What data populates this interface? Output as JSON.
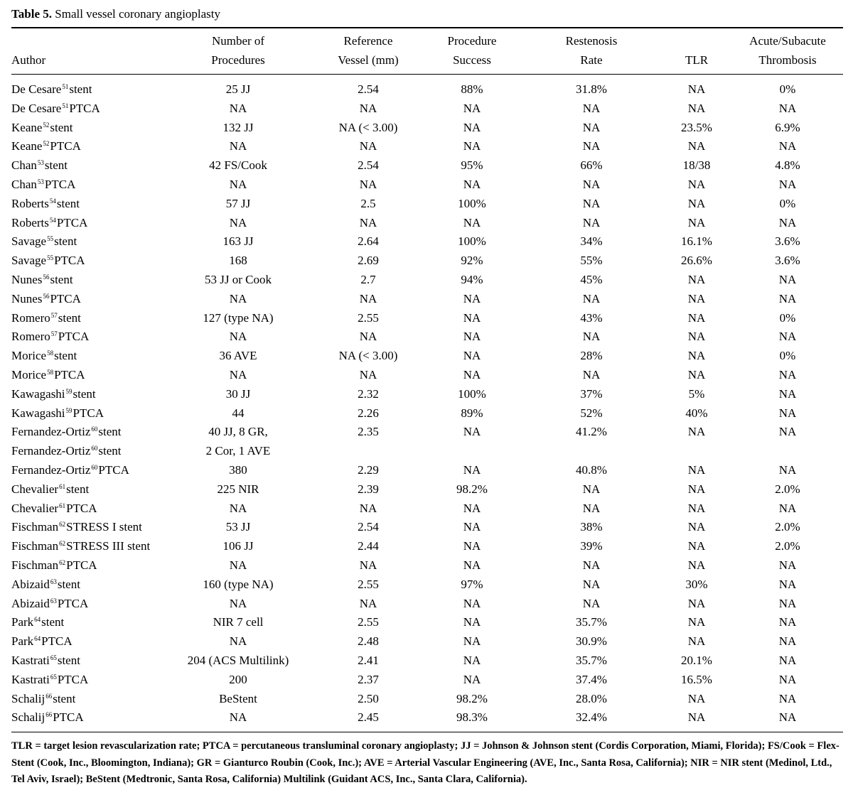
{
  "caption": {
    "label": "Table 5.",
    "text": "Small vessel coronary angioplasty"
  },
  "header": {
    "row1": [
      "",
      "Number of",
      "Reference",
      "Procedure",
      "Restenosis",
      "",
      "Acute/Subacute"
    ],
    "row2": [
      "Author",
      "Procedures",
      "Vessel (mm)",
      "Success",
      "Rate",
      "TLR",
      "Thrombosis"
    ]
  },
  "rows": [
    {
      "name": "De Cesare",
      "ref": "51",
      "suffix": "stent",
      "cells": [
        "25 JJ",
        "2.54",
        "88%",
        "31.8%",
        "NA",
        "0%"
      ]
    },
    {
      "name": "De Cesare",
      "ref": "51",
      "suffix": "PTCA",
      "cells": [
        "NA",
        "NA",
        "NA",
        "NA",
        "NA",
        "NA"
      ]
    },
    {
      "name": "Keane",
      "ref": "52",
      "suffix": "stent",
      "cells": [
        "132 JJ",
        "NA (< 3.00)",
        "NA",
        "NA",
        "23.5%",
        "6.9%"
      ]
    },
    {
      "name": "Keane",
      "ref": "52",
      "suffix": "PTCA",
      "cells": [
        "NA",
        "NA",
        "NA",
        "NA",
        "NA",
        "NA"
      ]
    },
    {
      "name": "Chan",
      "ref": "53",
      "suffix": "stent",
      "cells": [
        "42 FS/Cook",
        "2.54",
        "95%",
        "66%",
        "18/38",
        "4.8%"
      ]
    },
    {
      "name": "Chan",
      "ref": "53",
      "suffix": "PTCA",
      "cells": [
        "NA",
        "NA",
        "NA",
        "NA",
        "NA",
        "NA"
      ]
    },
    {
      "name": "Roberts",
      "ref": "54",
      "suffix": "stent",
      "cells": [
        "57 JJ",
        "2.5",
        "100%",
        "NA",
        "NA",
        "0%"
      ]
    },
    {
      "name": "Roberts",
      "ref": "54",
      "suffix": "PTCA",
      "cells": [
        "NA",
        "NA",
        "NA",
        "NA",
        "NA",
        "NA"
      ]
    },
    {
      "name": "Savage",
      "ref": "55",
      "suffix": "stent",
      "cells": [
        "163 JJ",
        "2.64",
        "100%",
        "34%",
        "16.1%",
        "3.6%"
      ]
    },
    {
      "name": "Savage",
      "ref": "55",
      "suffix": "PTCA",
      "cells": [
        "168",
        "2.69",
        "92%",
        "55%",
        "26.6%",
        "3.6%"
      ]
    },
    {
      "name": "Nunes",
      "ref": "56",
      "suffix": "stent",
      "cells": [
        "53 JJ or Cook",
        "2.7",
        "94%",
        "45%",
        "NA",
        "NA"
      ]
    },
    {
      "name": "Nunes",
      "ref": "56",
      "suffix": "PTCA",
      "cells": [
        "NA",
        "NA",
        "NA",
        "NA",
        "NA",
        "NA"
      ]
    },
    {
      "name": "Romero",
      "ref": "57",
      "suffix": "stent",
      "cells": [
        "127 (type NA)",
        "2.55",
        "NA",
        "43%",
        "NA",
        "0%"
      ]
    },
    {
      "name": "Romero",
      "ref": "57",
      "suffix": "PTCA",
      "cells": [
        "NA",
        "NA",
        "NA",
        "NA",
        "NA",
        "NA"
      ]
    },
    {
      "name": "Morice",
      "ref": "58",
      "suffix": "stent",
      "cells": [
        "36 AVE",
        "NA (< 3.00)",
        "NA",
        "28%",
        "NA",
        "0%"
      ]
    },
    {
      "name": "Morice",
      "ref": "58",
      "suffix": "PTCA",
      "cells": [
        "NA",
        "NA",
        "NA",
        "NA",
        "NA",
        "NA"
      ]
    },
    {
      "name": "Kawagashi",
      "ref": "59",
      "suffix": "stent",
      "cells": [
        "30 JJ",
        "2.32",
        "100%",
        "37%",
        "5%",
        "NA"
      ]
    },
    {
      "name": "Kawagashi",
      "ref": "59",
      "suffix": "PTCA",
      "cells": [
        "44",
        "2.26",
        "89%",
        "52%",
        "40%",
        "NA"
      ]
    },
    {
      "name": "Fernandez-Ortiz",
      "ref": "60",
      "suffix": "stent",
      "cells": [
        "40 JJ, 8 GR,",
        "2.35",
        "NA",
        "41.2%",
        "NA",
        "NA"
      ]
    },
    {
      "name": "Fernandez-Ortiz",
      "ref": "60",
      "suffix": "stent",
      "cells": [
        "2 Cor, 1 AVE",
        "",
        "",
        "",
        "",
        ""
      ]
    },
    {
      "name": "Fernandez-Ortiz",
      "ref": "60",
      "suffix": "PTCA",
      "cells": [
        "380",
        "2.29",
        "NA",
        "40.8%",
        "NA",
        "NA"
      ]
    },
    {
      "name": "Chevalier",
      "ref": "61",
      "suffix": "stent",
      "cells": [
        "225 NIR",
        "2.39",
        "98.2%",
        "NA",
        "NA",
        "2.0%"
      ]
    },
    {
      "name": "Chevalier",
      "ref": "61",
      "suffix": "PTCA",
      "cells": [
        "NA",
        "NA",
        "NA",
        "NA",
        "NA",
        "NA"
      ]
    },
    {
      "name": "Fischman",
      "ref": "62",
      "suffix": "STRESS I stent",
      "cells": [
        "53 JJ",
        "2.54",
        "NA",
        "38%",
        "NA",
        "2.0%"
      ]
    },
    {
      "name": "Fischman",
      "ref": "62",
      "suffix": "STRESS III stent",
      "cells": [
        "106 JJ",
        "2.44",
        "NA",
        "39%",
        "NA",
        "2.0%"
      ]
    },
    {
      "name": "Fischman",
      "ref": "62",
      "suffix": "PTCA",
      "cells": [
        "NA",
        "NA",
        "NA",
        "NA",
        "NA",
        "NA"
      ]
    },
    {
      "name": "Abizaid",
      "ref": "63",
      "suffix": "stent",
      "cells": [
        "160 (type NA)",
        "2.55",
        "97%",
        "NA",
        "30%",
        "NA"
      ]
    },
    {
      "name": "Abizaid",
      "ref": "63",
      "suffix": "PTCA",
      "cells": [
        "NA",
        "NA",
        "NA",
        "NA",
        "NA",
        "NA"
      ]
    },
    {
      "name": "Park",
      "ref": "64",
      "suffix": "stent",
      "cells": [
        "NIR 7 cell",
        "2.55",
        "NA",
        "35.7%",
        "NA",
        "NA"
      ]
    },
    {
      "name": "Park",
      "ref": "64",
      "suffix": "PTCA",
      "cells": [
        "NA",
        "2.48",
        "NA",
        "30.9%",
        "NA",
        "NA"
      ]
    },
    {
      "name": "Kastrati",
      "ref": "65",
      "suffix": "stent",
      "cells": [
        "204 (ACS Multilink)",
        "2.41",
        "NA",
        "35.7%",
        "20.1%",
        "NA"
      ]
    },
    {
      "name": "Kastrati",
      "ref": "65",
      "suffix": "PTCA",
      "cells": [
        "200",
        "2.37",
        "NA",
        "37.4%",
        "16.5%",
        "NA"
      ]
    },
    {
      "name": "Schalij",
      "ref": "66",
      "suffix": "stent",
      "cells": [
        "BeStent",
        "2.50",
        "98.2%",
        "28.0%",
        "NA",
        "NA"
      ]
    },
    {
      "name": "Schalij",
      "ref": "66",
      "suffix": "PTCA",
      "cells": [
        "NA",
        "2.45",
        "98.3%",
        "32.4%",
        "NA",
        "NA"
      ]
    }
  ],
  "footnote": "TLR = target lesion revascularization rate;  PTCA = percutaneous transluminal coronary angioplasty;  JJ = Johnson & Johnson stent (Cordis Corporation, Miami, Florida);  FS/Cook = Flex-Stent (Cook, Inc., Bloomington, Indiana);  GR = Gianturco Roubin (Cook, Inc.);  AVE = Arterial Vascular Engineering (AVE, Inc., Santa Rosa, California);  NIR = NIR stent (Medinol, Ltd., Tel Aviv, Israel);  BeStent (Medtronic, Santa Rosa, California) Multilink (Guidant ACS, Inc., Santa Clara, California)."
}
